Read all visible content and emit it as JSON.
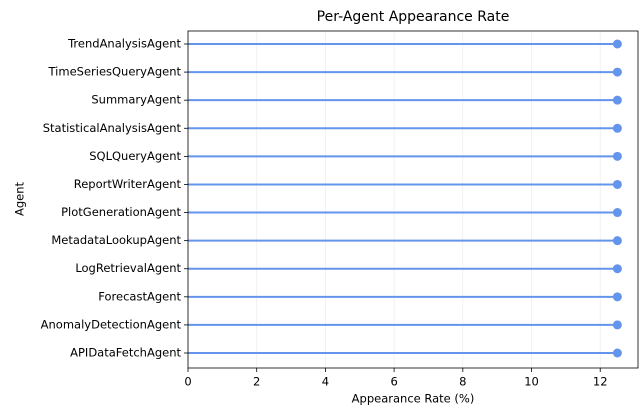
{
  "chart_data": {
    "type": "lollipop",
    "title": "Per-Agent Appearance Rate",
    "x_label": "Appearance Rate (%)",
    "y_label": "Agent",
    "categories": [
      "TrendAnalysisAgent",
      "TimeSeriesQueryAgent",
      "SummaryAgent",
      "StatisticalAnalysisAgent",
      "SQLQueryAgent",
      "ReportWriterAgent",
      "PlotGenerationAgent",
      "MetadataLookupAgent",
      "LogRetrievalAgent",
      "ForecastAgent",
      "AnomalyDetectionAgent",
      "APIDataFetchAgent"
    ],
    "values": [
      12.5,
      12.5,
      12.5,
      12.5,
      12.5,
      12.5,
      12.5,
      12.5,
      12.5,
      12.5,
      12.5,
      12.5
    ],
    "color": "#6495ed",
    "xlim": [
      0,
      13.1
    ],
    "xticks": [
      0,
      2,
      4,
      6,
      8,
      10,
      12
    ],
    "grid": true
  }
}
